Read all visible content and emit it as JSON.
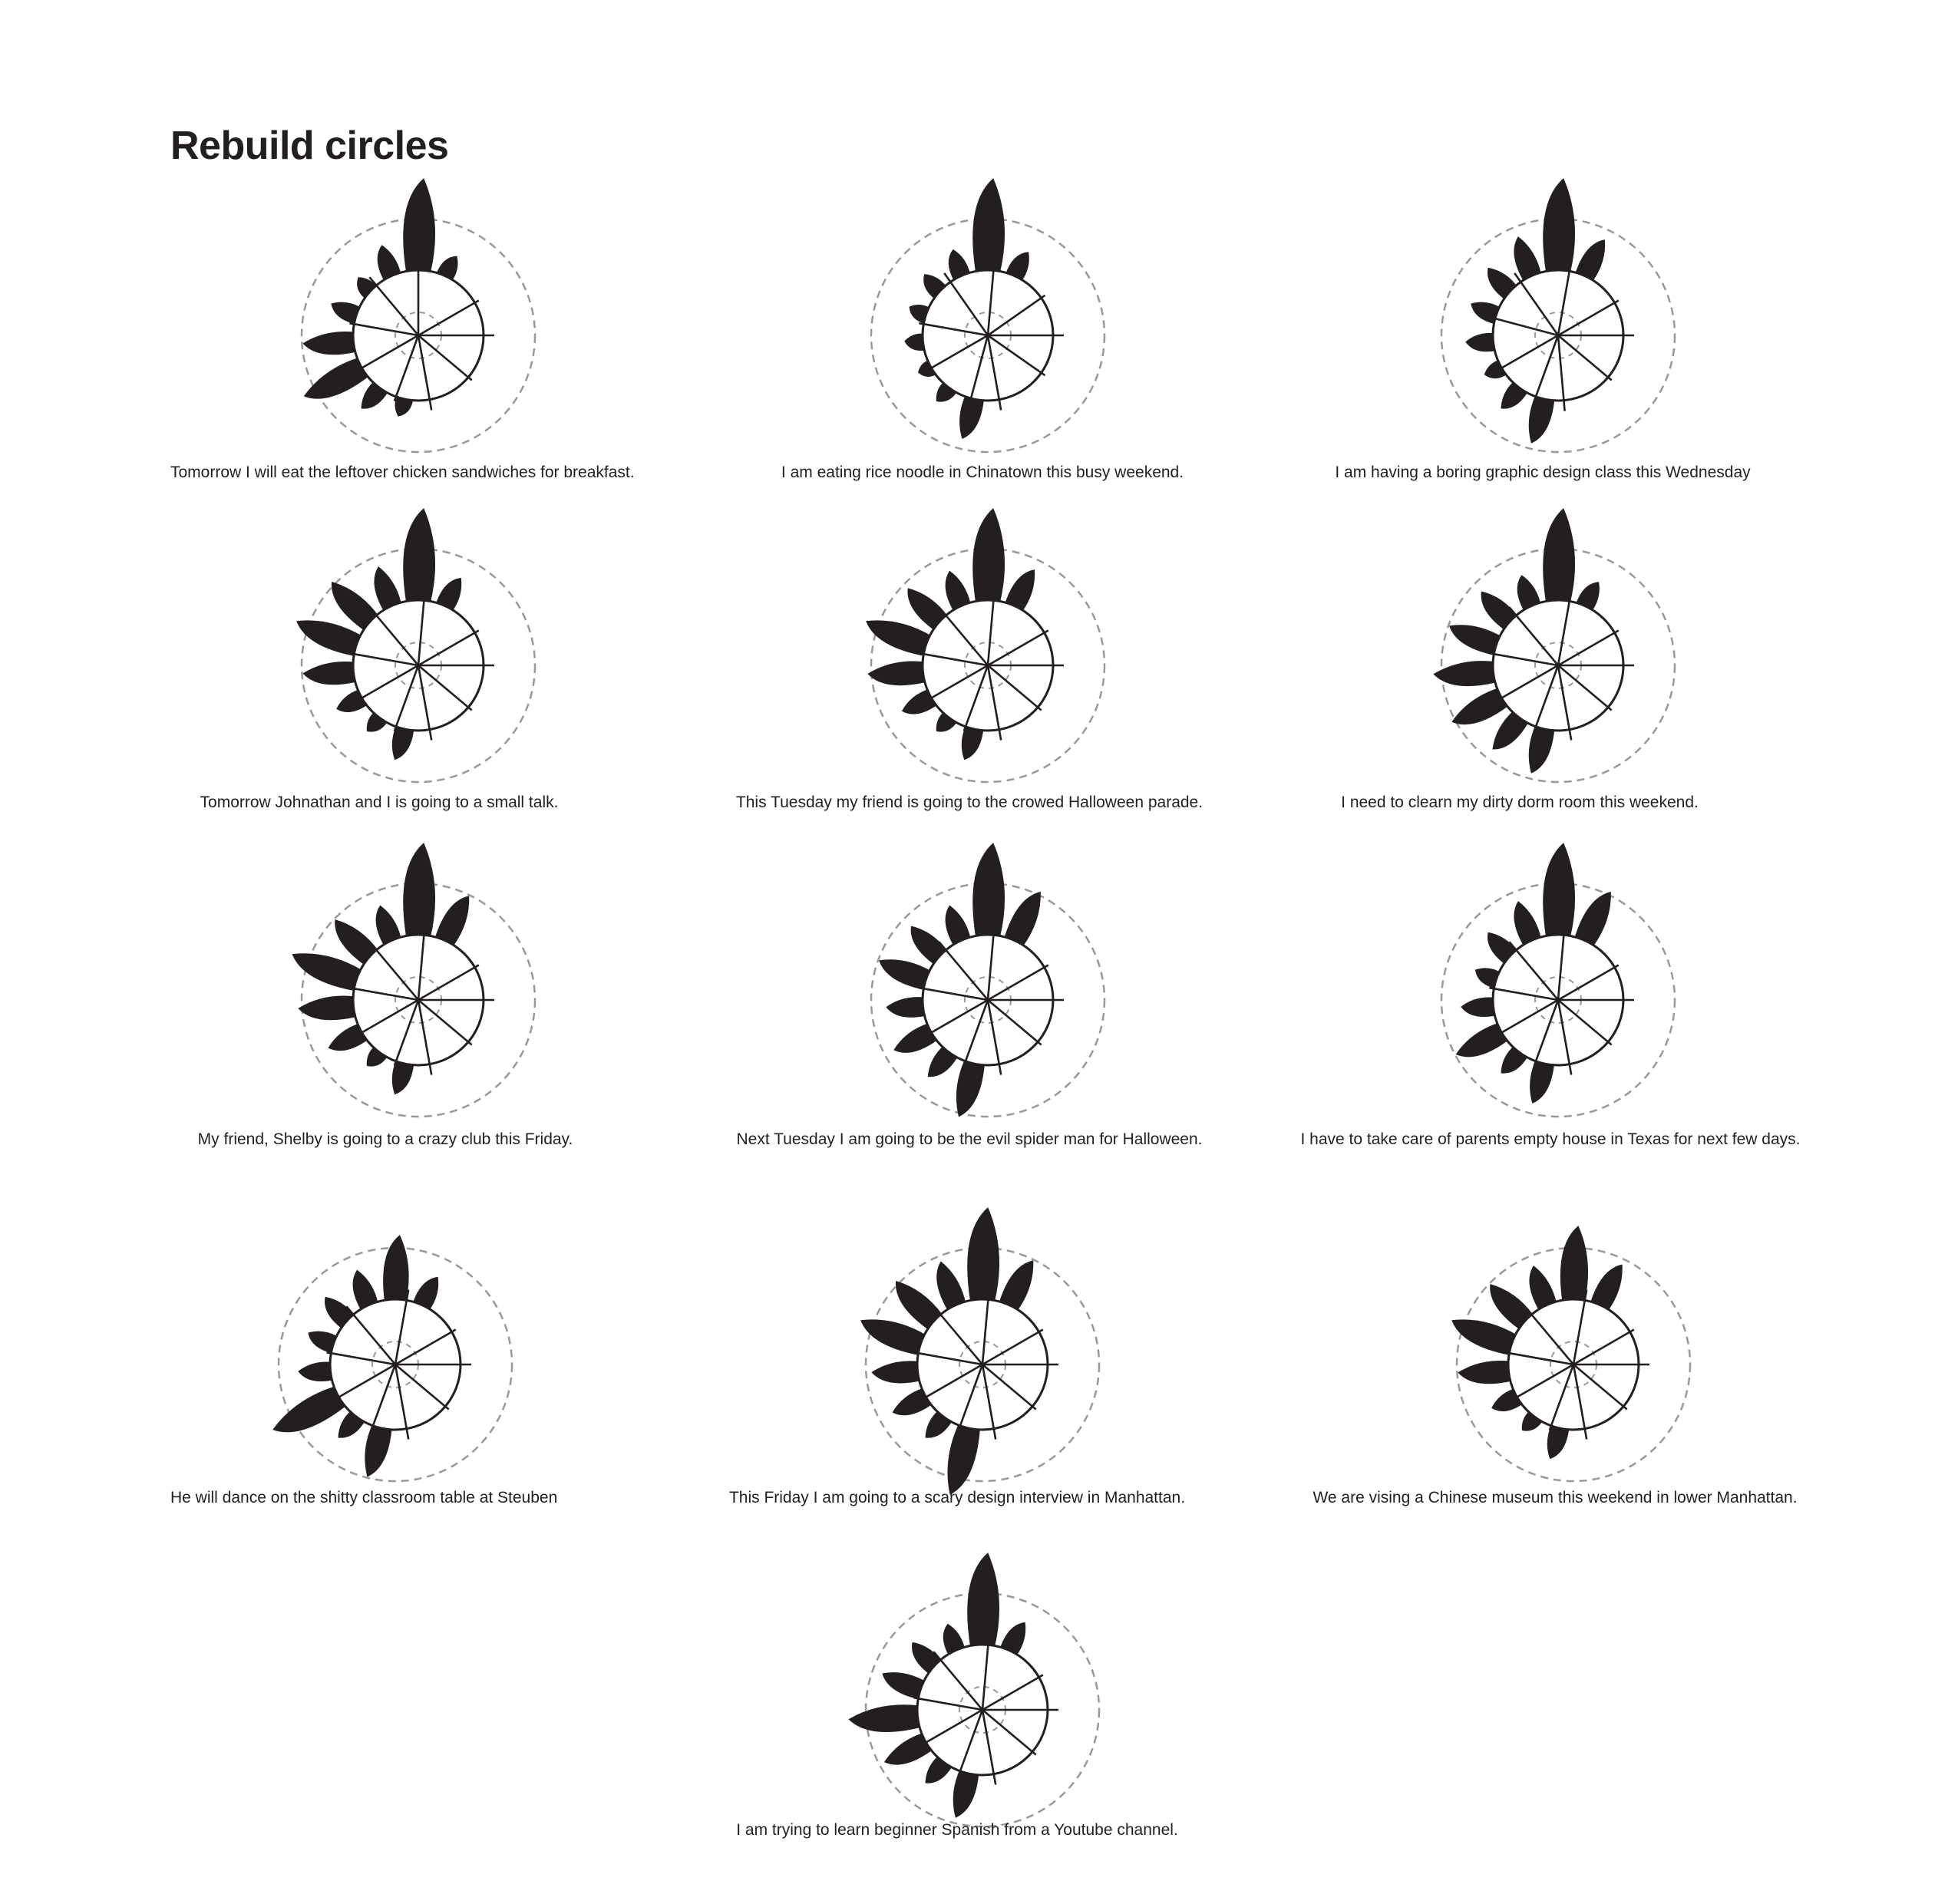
{
  "title": "Rebuild circles",
  "colors": {
    "ink": "#231f20",
    "dashed": "#999999",
    "background": "#ffffff"
  },
  "glyphs": [
    {
      "caption": "Tomorrow I will eat the leftover chicken sandwiches for breakfast.",
      "petals": [
        1.0,
        0.25,
        0,
        0,
        0,
        0,
        0,
        0,
        0.2,
        0.3,
        0.7,
        0.55,
        0.3,
        0.2,
        0.35
      ],
      "spokes": [
        90,
        30,
        0,
        -40,
        -80,
        -110,
        -150,
        -190,
        -230
      ]
    },
    {
      "caption": "I am eating rice noodle in Chinatown this busy weekend.",
      "petals": [
        1.0,
        0.3,
        0,
        0,
        0,
        0,
        0,
        0,
        0.45,
        0.2,
        0.15,
        0.2,
        0.2,
        0.25,
        0.3
      ],
      "spokes": [
        85,
        35,
        0,
        -35,
        -80,
        -105,
        -150,
        -190,
        -235
      ]
    },
    {
      "caption": "I am having a boring graphic design class this Wednesday",
      "petals": [
        1.0,
        0.45,
        0,
        0,
        0,
        0,
        0,
        0,
        0.5,
        0.3,
        0.2,
        0.3,
        0.3,
        0.35,
        0.45
      ],
      "spokes": [
        80,
        30,
        0,
        -40,
        -85,
        -110,
        -150,
        -195,
        -235
      ]
    },
    {
      "caption": "Tomorrow Johnathan and I is going to a small talk.",
      "petals": [
        1.0,
        0.35,
        0,
        0,
        0,
        0,
        0,
        0,
        0.35,
        0.2,
        0.3,
        0.55,
        0.7,
        0.6,
        0.45
      ],
      "spokes": [
        85,
        30,
        0,
        -40,
        -80,
        -110,
        -150,
        -190,
        -230
      ]
    },
    {
      "caption": "This Tuesday my friend is going to the crowed Halloween parade.",
      "petals": [
        1.0,
        0.45,
        0,
        0,
        0,
        0,
        0,
        0,
        0.35,
        0.2,
        0.35,
        0.6,
        0.7,
        0.5,
        0.4
      ],
      "spokes": [
        85,
        30,
        0,
        -40,
        -80,
        -110,
        -150,
        -190,
        -230
      ]
    },
    {
      "caption": "I need to clearn my dirty dorm room this weekend.",
      "petals": [
        1.0,
        0.3,
        0,
        0,
        0,
        0,
        0,
        0,
        0.5,
        0.45,
        0.6,
        0.65,
        0.55,
        0.45,
        0.35
      ],
      "spokes": [
        80,
        30,
        0,
        -40,
        -80,
        -110,
        -150,
        -190,
        -230
      ]
    },
    {
      "caption": "My friend, Shelby is going to a crazy club this Friday.",
      "petals": [
        1.0,
        0.55,
        0,
        0,
        0,
        0,
        0,
        0,
        0.35,
        0.2,
        0.4,
        0.6,
        0.75,
        0.55,
        0.4
      ],
      "spokes": [
        85,
        30,
        0,
        -40,
        -80,
        -110,
        -150,
        -190,
        -230
      ]
    },
    {
      "caption": "Next Tuesday I am going to be the evil spider man for Halloween.",
      "petals": [
        1.0,
        0.6,
        0,
        0,
        0,
        0,
        0,
        0,
        0.6,
        0.35,
        0.45,
        0.4,
        0.55,
        0.45,
        0.4
      ],
      "spokes": [
        85,
        30,
        0,
        -40,
        -80,
        -110,
        -150,
        -190,
        -230
      ]
    },
    {
      "caption": "I have to take care of parents empty house in Texas for next few days.",
      "petals": [
        1.0,
        0.6,
        0,
        0,
        0,
        0,
        0,
        0,
        0.45,
        0.3,
        0.55,
        0.35,
        0.25,
        0.35,
        0.45
      ],
      "spokes": [
        85,
        30,
        0,
        -40,
        -80,
        -110,
        -150,
        -190,
        -230
      ]
    },
    {
      "caption": "He will dance on the shitty classroom table at Steuben",
      "petals": [
        0.7,
        0.35,
        0,
        0,
        0,
        0,
        0,
        0,
        0.55,
        0.3,
        0.8,
        0.35,
        0.3,
        0.35,
        0.4
      ],
      "spokes": [
        80,
        30,
        0,
        -40,
        -80,
        -110,
        -150,
        -190,
        -230
      ]
    },
    {
      "caption": "This Friday I am going to a scary design interview in Manhattan.",
      "petals": [
        1.0,
        0.55,
        0,
        0,
        0,
        0,
        0,
        0,
        0.75,
        0.3,
        0.4,
        0.5,
        0.7,
        0.6,
        0.5
      ],
      "spokes": [
        85,
        30,
        0,
        -40,
        -80,
        -110,
        -150,
        -190,
        -230
      ]
    },
    {
      "caption": "We are vising a Chinese museum this weekend in lower Manhattan.",
      "petals": [
        0.8,
        0.5,
        0,
        0,
        0,
        0,
        0,
        0,
        0.35,
        0.2,
        0.3,
        0.55,
        0.7,
        0.55,
        0.45
      ],
      "spokes": [
        80,
        30,
        0,
        -40,
        -80,
        -110,
        -150,
        -190,
        -230
      ]
    },
    {
      "caption": "I am trying to learn beginner Spanish from a Youtube channel.",
      "petals": [
        1.0,
        0.35,
        0,
        0,
        0,
        0,
        0,
        0,
        0.5,
        0.3,
        0.5,
        0.75,
        0.45,
        0.35,
        0.3
      ],
      "spokes": [
        85,
        30,
        0,
        -40,
        -80,
        -110,
        -150,
        -190,
        -230
      ]
    }
  ]
}
